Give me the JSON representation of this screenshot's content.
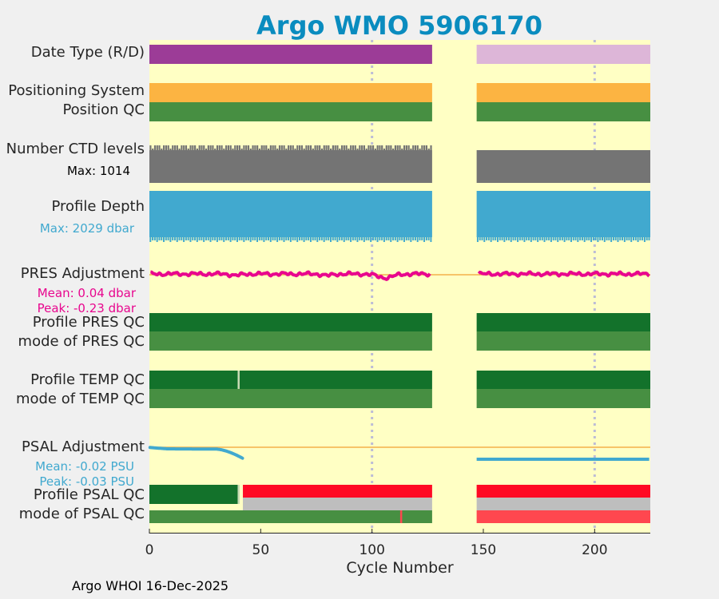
{
  "chart_data": {
    "type": "timeline",
    "title": "Argo WMO 5906170",
    "xlabel": "Cycle Number",
    "xlim": [
      0,
      225
    ],
    "xticks": [
      0,
      50,
      100,
      150,
      200
    ],
    "grid_x": [
      100,
      200
    ],
    "gap": [
      127,
      147
    ],
    "colors": {
      "title": "#0a8cbf",
      "background": "#ffffc4",
      "frame": "#f0f0f0",
      "D": "#9c3c97",
      "R": "#ddb6d8",
      "pos_system": "#fcb442",
      "qc1": "#478f42",
      "qc1_dark": "#13722b",
      "qc4": "#ff0a24",
      "qc3": "#ff474f",
      "missing": "#bebebe",
      "ctd": "#747474",
      "depth": "#41a9cf",
      "pres": "#e8068e",
      "psal": "#41a9cf",
      "zero_line": "#f4b14b",
      "grid": "#bcbcd6"
    },
    "rows": [
      {
        "id": "date-type",
        "label": "Date Type (R/D)"
      },
      {
        "id": "positioning-system",
        "label": "Positioning System"
      },
      {
        "id": "position-qc",
        "label": "Position QC"
      },
      {
        "id": "ctd-levels",
        "label": "Number CTD levels",
        "sub": "Max: 1014",
        "max": 1014
      },
      {
        "id": "profile-depth",
        "label": "Profile Depth",
        "sub": "Max: 2029 dbar",
        "max_dbar": 2029
      },
      {
        "id": "pres-adjustment",
        "label": "PRES Adjustment",
        "sub": [
          "Mean: 0.04 dbar",
          "Peak: -0.23 dbar"
        ],
        "mean": 0.04,
        "peak": -0.23
      },
      {
        "id": "profile-pres-qc",
        "label": "Profile PRES QC"
      },
      {
        "id": "mode-pres-qc",
        "label": "mode of PRES QC"
      },
      {
        "id": "profile-temp-qc",
        "label": "Profile TEMP QC"
      },
      {
        "id": "mode-temp-qc",
        "label": "mode of TEMP QC"
      },
      {
        "id": "psal-adjustment",
        "label": "PSAL Adjustment",
        "sub": [
          "Mean: -0.02 PSU",
          "Peak: -0.03 PSU"
        ],
        "mean": -0.02,
        "peak": -0.03
      },
      {
        "id": "profile-psal-qc",
        "label": "Profile PSAL QC"
      },
      {
        "id": "mode-psal-qc",
        "label": "mode of PSAL QC"
      }
    ],
    "segments": {
      "date_type": [
        {
          "from": 0,
          "to": 127,
          "value": "D"
        },
        {
          "from": 147,
          "to": 225,
          "value": "R"
        }
      ],
      "profile_temp_qc_marks": [
        40
      ],
      "profile_psal_qc": [
        {
          "from": 0,
          "to": 40,
          "value": "qc1_dark"
        },
        {
          "from": 42,
          "to": 127,
          "value": "qc4"
        },
        {
          "from": 147,
          "to": 225,
          "value": "qc4"
        }
      ],
      "profile_psal_qc_marks": [
        40
      ],
      "mode_psal_qc_marks": [
        113
      ],
      "psal_adjusted_until": 42,
      "psal_late_value": -0.03
    }
  },
  "footer": "Argo WHOI 16-Dec-2025"
}
